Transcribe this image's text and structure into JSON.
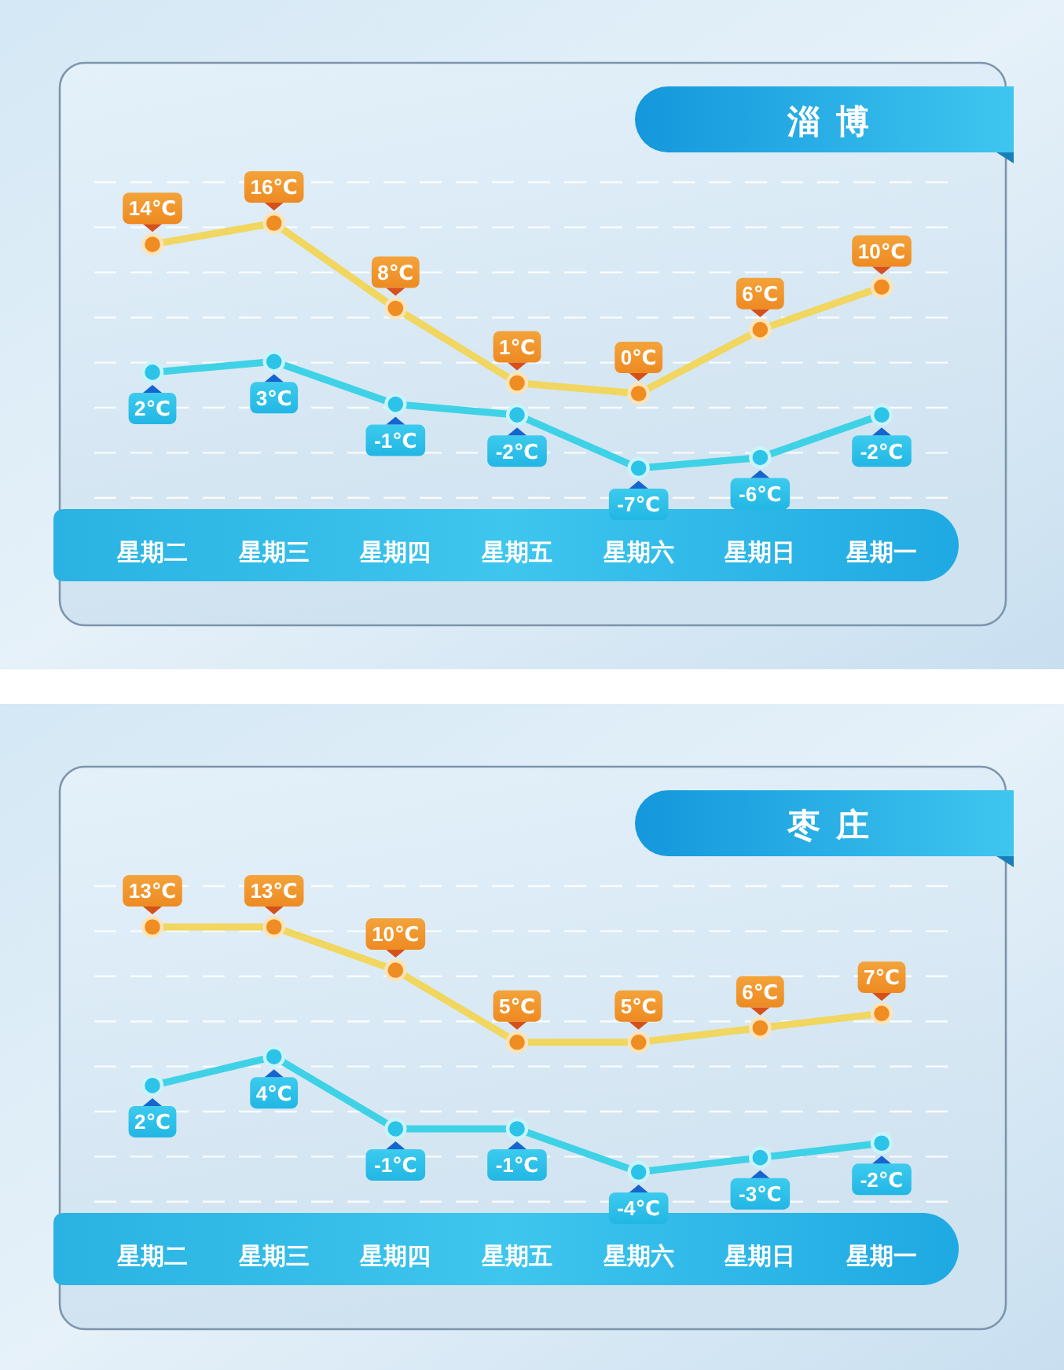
{
  "chart_data": [
    {
      "type": "line",
      "title": "淄博",
      "categories": [
        "星期二",
        "星期三",
        "星期四",
        "星期五",
        "星期六",
        "星期日",
        "星期一"
      ],
      "marker": "circle",
      "line_style": "solid",
      "grid": true,
      "series": [
        {
          "color": "#f1d65f",
          "values": [
            14,
            16,
            8,
            1,
            0,
            6,
            10
          ],
          "value_labels": [
            "14℃",
            "16℃",
            "8℃",
            "1℃",
            "0℃",
            "6℃",
            "10℃"
          ]
        },
        {
          "color": "#3fd2e6",
          "values": [
            2,
            3,
            -1,
            -2,
            -7,
            -6,
            -2
          ],
          "value_labels": [
            "2℃",
            "3℃",
            "-1℃",
            "-2℃",
            "-7℃",
            "-6℃",
            "-2℃"
          ]
        }
      ]
    },
    {
      "type": "line",
      "title": "枣庄",
      "categories": [
        "星期二",
        "星期三",
        "星期四",
        "星期五",
        "星期六",
        "星期日",
        "星期一"
      ],
      "marker": "circle",
      "line_style": "solid",
      "grid": true,
      "series": [
        {
          "color": "#f1d65f",
          "values": [
            13,
            13,
            10,
            5,
            5,
            6,
            7
          ],
          "value_labels": [
            "13℃",
            "13℃",
            "10℃",
            "5℃",
            "5℃",
            "6℃",
            "7℃"
          ]
        },
        {
          "color": "#3fd2e6",
          "values": [
            2,
            4,
            -1,
            -1,
            -4,
            -3,
            -2
          ],
          "value_labels": [
            "2℃",
            "4℃",
            "-1℃",
            "-1℃",
            "-4℃",
            "-3℃",
            "-2℃"
          ]
        }
      ]
    }
  ]
}
